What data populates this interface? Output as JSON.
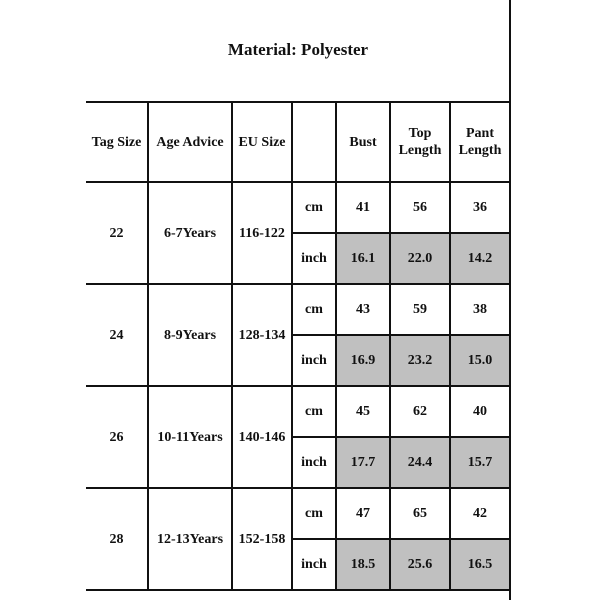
{
  "title": "Material: Polyester",
  "headers": [
    "Tag Size",
    "Age Advice",
    "EU Size",
    "",
    "Bust",
    "Top Length",
    "Pant Length"
  ],
  "units": {
    "cm": "cm",
    "inch": "inch"
  },
  "highlight_color": "#c0c0c0",
  "rows": [
    {
      "tag": "22",
      "age": "6-7Years",
      "eu": "116-122",
      "cm": [
        "41",
        "56",
        "36"
      ],
      "inch": [
        "16.1",
        "22.0",
        "14.2"
      ]
    },
    {
      "tag": "24",
      "age": "8-9Years",
      "eu": "128-134",
      "cm": [
        "43",
        "59",
        "38"
      ],
      "inch": [
        "16.9",
        "23.2",
        "15.0"
      ]
    },
    {
      "tag": "26",
      "age": "10-11Years",
      "eu": "140-146",
      "cm": [
        "45",
        "62",
        "40"
      ],
      "inch": [
        "17.7",
        "24.4",
        "15.7"
      ]
    },
    {
      "tag": "28",
      "age": "12-13Years",
      "eu": "152-158",
      "cm": [
        "47",
        "65",
        "42"
      ],
      "inch": [
        "18.5",
        "25.6",
        "16.5"
      ]
    }
  ]
}
